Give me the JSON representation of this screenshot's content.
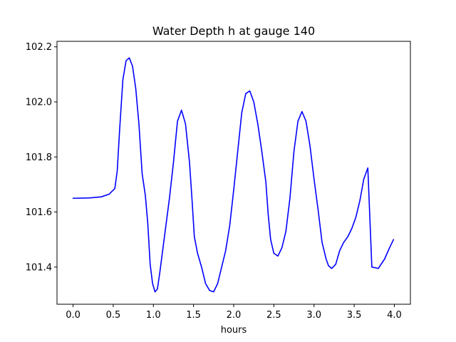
{
  "chart_data": {
    "type": "line",
    "title": "Water Depth h at gauge 140",
    "xlabel": "hours",
    "ylabel": "",
    "xlim": [
      -0.2,
      4.2
    ],
    "ylim": [
      101.265,
      102.22
    ],
    "grid": false,
    "xticks": [
      0.0,
      0.5,
      1.0,
      1.5,
      2.0,
      2.5,
      3.0,
      3.5,
      4.0
    ],
    "xtick_labels": [
      "0.0",
      "0.5",
      "1.0",
      "1.5",
      "2.0",
      "2.5",
      "3.0",
      "3.5",
      "4.0"
    ],
    "yticks": [
      101.4,
      101.6,
      101.8,
      102.0,
      102.2
    ],
    "ytick_labels": [
      "101.4",
      "101.6",
      "101.8",
      "102.0",
      "102.2"
    ],
    "series": [
      {
        "color": "#0000ff",
        "x": [
          0.0,
          0.2,
          0.35,
          0.45,
          0.52,
          0.55,
          0.58,
          0.62,
          0.66,
          0.7,
          0.74,
          0.78,
          0.82,
          0.86,
          0.9,
          0.93,
          0.96,
          0.99,
          1.02,
          1.05,
          1.08,
          1.12,
          1.16,
          1.2,
          1.25,
          1.3,
          1.35,
          1.4,
          1.45,
          1.48,
          1.51,
          1.55,
          1.6,
          1.65,
          1.7,
          1.75,
          1.8,
          1.85,
          1.9,
          1.95,
          2.0,
          2.05,
          2.1,
          2.15,
          2.2,
          2.25,
          2.3,
          2.35,
          2.4,
          2.43,
          2.46,
          2.5,
          2.55,
          2.6,
          2.65,
          2.7,
          2.75,
          2.8,
          2.85,
          2.9,
          2.95,
          3.0,
          3.05,
          3.1,
          3.15,
          3.18,
          3.22,
          3.27,
          3.32,
          3.37,
          3.42,
          3.47,
          3.52,
          3.57,
          3.62,
          3.67,
          3.72,
          3.8,
          3.88,
          3.94,
          3.99
        ],
        "y": [
          101.65,
          101.651,
          101.655,
          101.665,
          101.685,
          101.75,
          101.9,
          102.08,
          102.15,
          102.16,
          102.13,
          102.05,
          101.92,
          101.74,
          101.66,
          101.56,
          101.41,
          101.34,
          101.31,
          101.32,
          101.38,
          101.47,
          101.56,
          101.65,
          101.78,
          101.93,
          101.97,
          101.92,
          101.78,
          101.65,
          101.51,
          101.45,
          101.4,
          101.34,
          101.315,
          101.31,
          101.34,
          101.4,
          101.46,
          101.55,
          101.68,
          101.82,
          101.96,
          102.03,
          102.04,
          102.0,
          101.92,
          101.82,
          101.71,
          101.59,
          101.5,
          101.45,
          101.44,
          101.47,
          101.53,
          101.65,
          101.82,
          101.93,
          101.965,
          101.93,
          101.84,
          101.72,
          101.61,
          101.49,
          101.43,
          101.405,
          101.395,
          101.41,
          101.46,
          101.49,
          101.51,
          101.54,
          101.58,
          101.64,
          101.72,
          101.76,
          101.4,
          101.395,
          101.43,
          101.47,
          101.5
        ]
      }
    ]
  }
}
